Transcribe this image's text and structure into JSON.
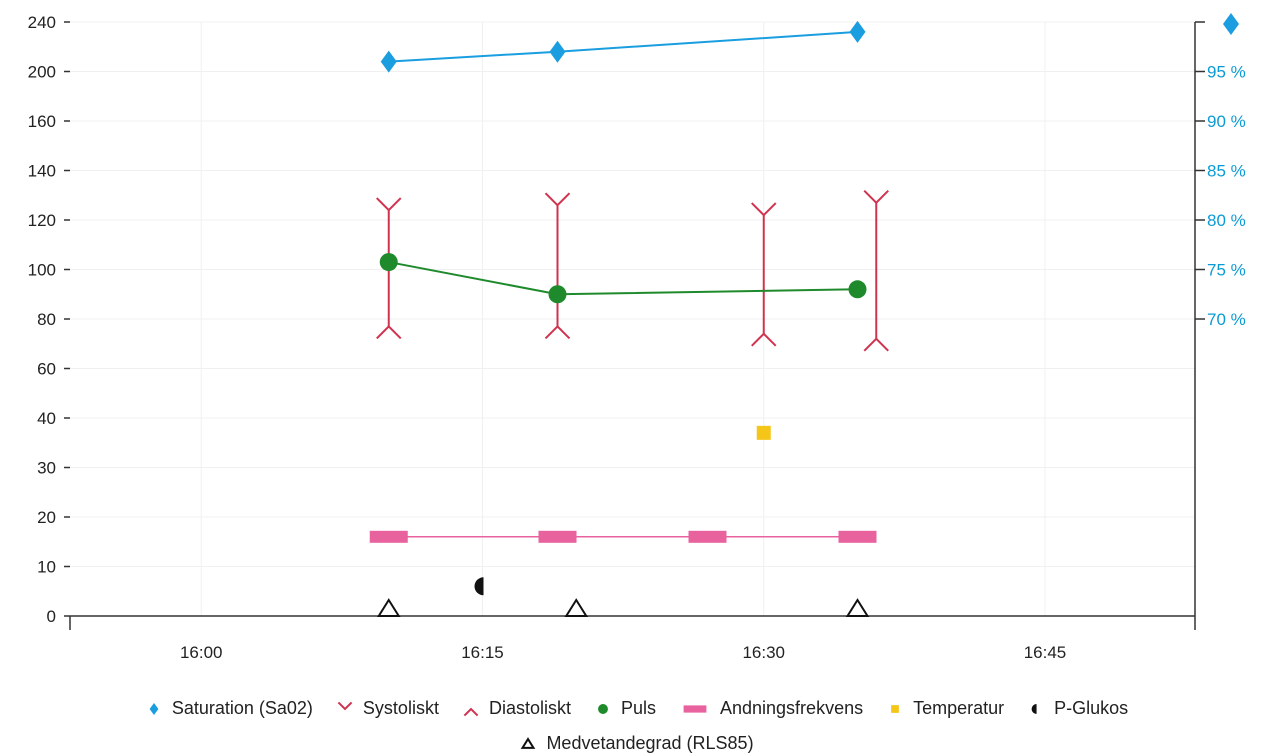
{
  "chart_data": {
    "type": "line",
    "x_type": "time",
    "xlim": [
      "15:53",
      "16:53"
    ],
    "x_ticks": [
      "16:00",
      "16:15",
      "16:30",
      "16:45"
    ],
    "y_left": {
      "ylim": [
        0,
        240
      ],
      "ticks": [
        "0",
        "10",
        "20",
        "30",
        "40",
        "60",
        "80",
        "100",
        "120",
        "140",
        "160",
        "200",
        "240"
      ]
    },
    "y_right": {
      "ticks": [
        "70 %",
        "75 %",
        "80 %",
        "85 %",
        "90 %",
        "95 %"
      ],
      "color": "#0a9bd6"
    },
    "grid": true,
    "series": [
      {
        "name": "Saturation (Sa02)",
        "axis": "right",
        "unit": "%",
        "marker": "diamond",
        "color": "#1a9ee0",
        "points": [
          [
            "16:10",
            96
          ],
          [
            "16:19",
            97
          ],
          [
            "16:35",
            99
          ]
        ]
      },
      {
        "name": "Systoliskt",
        "axis": "left",
        "marker": "v",
        "color": "#d0334f",
        "points": [
          [
            "16:10",
            124
          ],
          [
            "16:19",
            126
          ],
          [
            "16:30",
            122
          ],
          [
            "16:36",
            127
          ]
        ]
      },
      {
        "name": "Diastoliskt",
        "axis": "left",
        "marker": "^",
        "color": "#d0334f",
        "points": [
          [
            "16:10",
            77
          ],
          [
            "16:19",
            77
          ],
          [
            "16:30",
            74
          ],
          [
            "16:36",
            72
          ]
        ]
      },
      {
        "name": "Puls",
        "axis": "left",
        "marker": "circle",
        "color": "#1f8a2c",
        "points": [
          [
            "16:10",
            103
          ],
          [
            "16:19",
            90
          ],
          [
            "16:35",
            92
          ]
        ]
      },
      {
        "name": "Andningsfrekvens",
        "axis": "left",
        "marker": "bar",
        "color": "#e8629e",
        "points": [
          [
            "16:10",
            16
          ],
          [
            "16:19",
            16
          ],
          [
            "16:27",
            16
          ],
          [
            "16:35",
            16
          ]
        ]
      },
      {
        "name": "Temperatur",
        "axis": "left",
        "marker": "square",
        "color": "#f5c518",
        "points": [
          [
            "16:30",
            37
          ]
        ]
      },
      {
        "name": "P-Glukos",
        "axis": "left",
        "marker": "half-circle",
        "color": "#111111",
        "points": [
          [
            "16:15",
            6
          ]
        ]
      },
      {
        "name": "Medvetandegrad (RLS85)",
        "axis": "left",
        "marker": "triangle-open",
        "color": "#111111",
        "points": [
          [
            "16:10",
            1
          ],
          [
            "16:20",
            1
          ],
          [
            "16:35",
            1
          ]
        ]
      }
    ],
    "legend_position": "bottom"
  }
}
